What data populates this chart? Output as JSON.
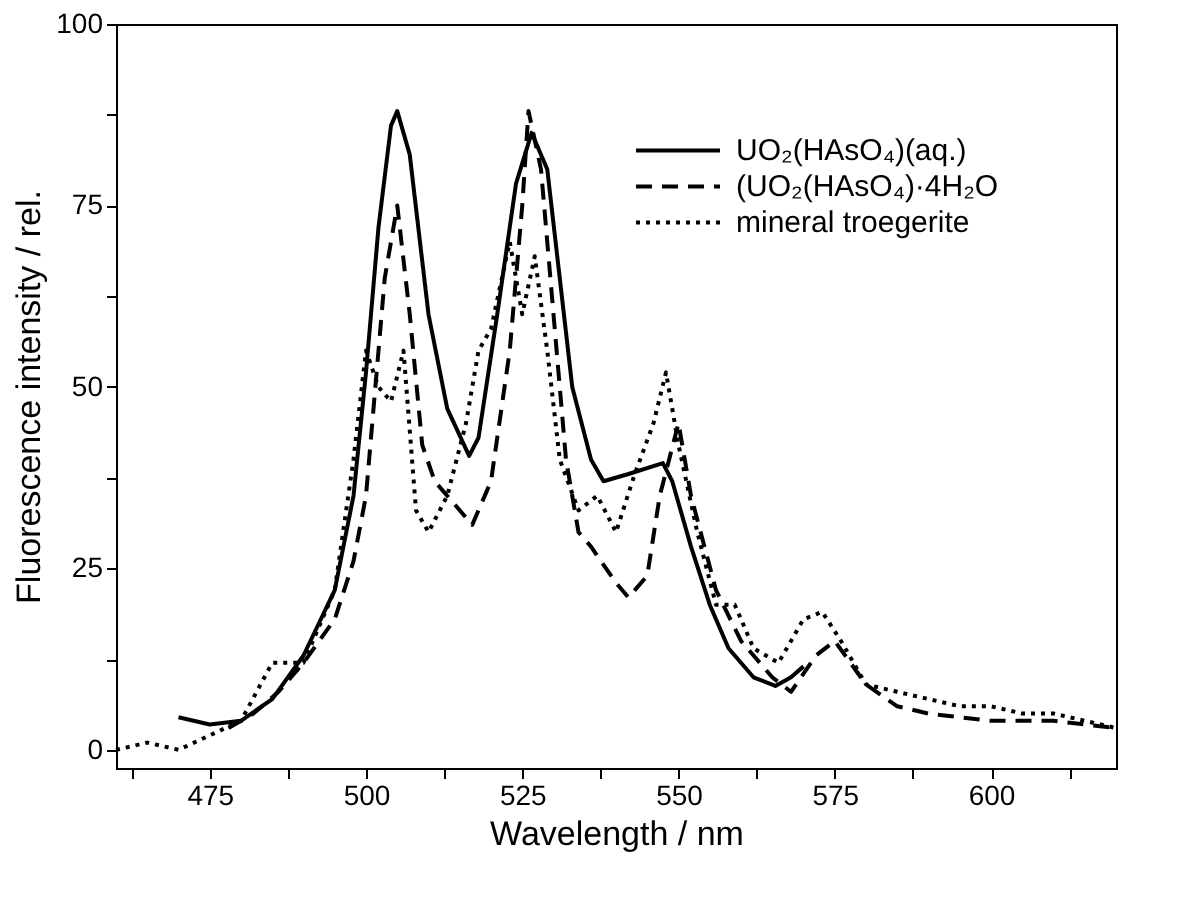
{
  "chart_data": {
    "type": "line",
    "xlabel": "Wavelength / nm",
    "ylabel": "Fluorescence intensity / rel.",
    "xlim": [
      460,
      620
    ],
    "ylim": [
      -2.5,
      100
    ],
    "xticks": [
      {
        "value": 462.5,
        "label": null
      },
      475,
      {
        "value": 487.5,
        "label": null
      },
      500,
      {
        "value": 512.5,
        "label": null
      },
      525,
      {
        "value": 537.5,
        "label": null
      },
      550,
      {
        "value": 562.5,
        "label": null
      },
      575,
      {
        "value": 587.5,
        "label": null
      },
      600,
      {
        "value": 612.5,
        "label": null
      }
    ],
    "yticks": [
      0,
      {
        "value": 12.5,
        "label": null
      },
      25,
      {
        "value": 37.5,
        "label": null
      },
      50,
      {
        "value": 62.5,
        "label": null
      },
      75,
      {
        "value": 87.5,
        "label": null
      },
      100
    ],
    "grid": false,
    "legend": "top right",
    "series": [
      {
        "name": "UO₂(HAsO₄)(aq.)",
        "color": "#000000",
        "line_style": "solid",
        "x": [
          470,
          475,
          480,
          485,
          490,
          495,
          498,
          500,
          502,
          504,
          505,
          507,
          510,
          513,
          516.5,
          518,
          521,
          524,
          526.5,
          529,
          531,
          533,
          536,
          538,
          542,
          547.5,
          549,
          552,
          555,
          558,
          562,
          565.5,
          568,
          570
        ],
        "values": [
          4.5,
          3.5,
          4,
          7,
          13,
          22,
          35,
          52,
          72,
          86,
          88,
          82,
          60,
          47,
          40.5,
          43,
          60,
          78,
          85,
          80,
          65,
          50,
          40,
          37,
          38,
          39.5,
          37,
          28,
          20,
          14,
          10,
          8.8,
          10,
          11.5
        ]
      },
      {
        "name": "(UO₂(HAsO₄)·4H₂O",
        "color": "#000000",
        "line_style": "dashed",
        "x": [
          478,
          482,
          486,
          490,
          495,
          498,
          500,
          503,
          505,
          507,
          509,
          511,
          514,
          517,
          520,
          523,
          525,
          526,
          528,
          530,
          532,
          534,
          536,
          540,
          542,
          545,
          547,
          550,
          552,
          556,
          560,
          565,
          568,
          572,
          575,
          580,
          585,
          590,
          600,
          610,
          620
        ],
        "values": [
          3,
          5,
          8,
          12,
          18,
          26,
          35,
          65,
          75,
          60,
          42,
          37,
          34,
          31,
          37,
          55,
          75,
          88,
          80,
          60,
          40,
          30,
          28,
          23,
          21,
          24,
          35,
          45,
          35,
          22,
          15,
          10,
          8,
          13,
          15,
          9,
          6,
          5,
          4,
          4,
          3
        ]
      },
      {
        "name": "mineral troegerite",
        "color": "#000000",
        "line_style": "dotted",
        "x": [
          460,
          465,
          470,
          475,
          480,
          485,
          490,
          495,
          498,
          500,
          502,
          504,
          506,
          508,
          510,
          513,
          516,
          518,
          520,
          523,
          525,
          527,
          529,
          531,
          534,
          537,
          540,
          543,
          546,
          548,
          550,
          553,
          556,
          559,
          562,
          566,
          570,
          573,
          576,
          580,
          585,
          590,
          595,
          600,
          605,
          610,
          615,
          620
        ],
        "values": [
          0,
          1,
          0,
          2,
          4,
          12,
          12,
          22,
          40,
          55,
          50,
          48,
          55,
          33,
          30,
          35,
          45,
          55,
          58,
          70,
          60,
          68,
          55,
          40,
          33,
          35,
          30,
          38,
          45,
          52,
          42,
          30,
          20,
          20,
          14,
          12,
          18,
          19,
          15,
          9,
          8,
          7,
          6,
          6,
          5,
          5,
          4,
          3
        ]
      }
    ]
  }
}
